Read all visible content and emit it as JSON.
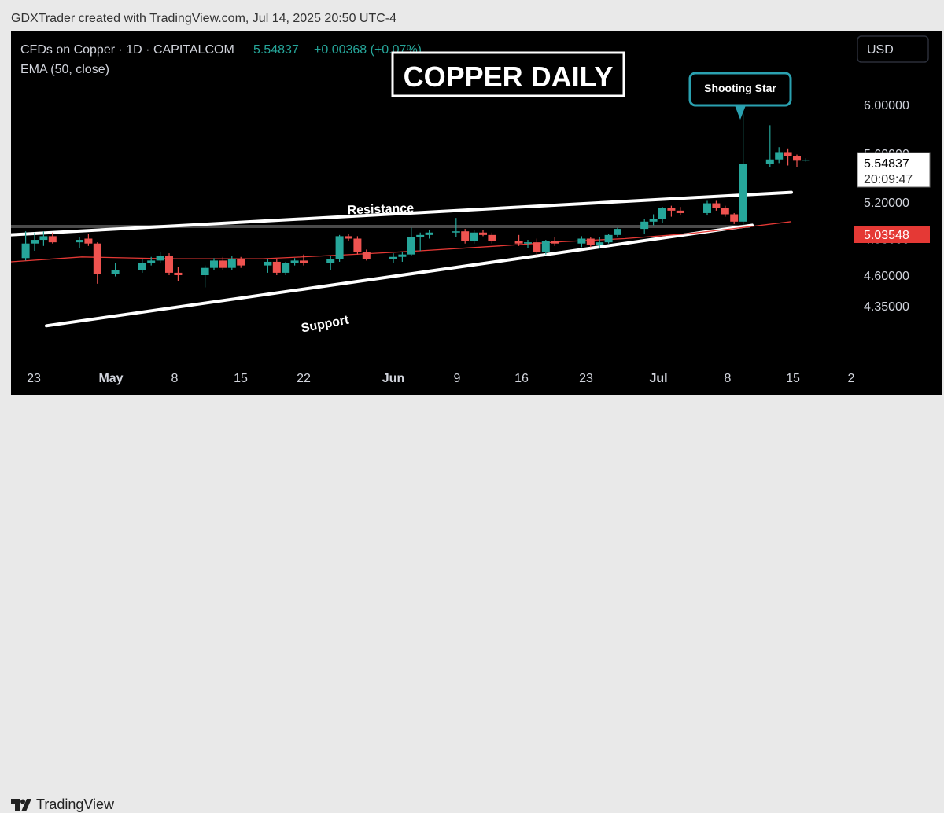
{
  "header": {
    "text": "GDXTrader created with TradingView.com, Jul 14, 2025 20:50 UTC-4"
  },
  "footer": {
    "logo_text": "TradingView"
  },
  "chart": {
    "symbol_line": "CFDs on Copper · 1D · CAPITALCOM",
    "price_text": "5.54837",
    "change_text": "+0.00368 (+0.07%)",
    "ema_label": "EMA (50, close)",
    "currency": "USD",
    "overlay_title": "COPPER DAILY",
    "callout": "Shooting Star",
    "resistance_label": "Resistance",
    "support_label": "Support",
    "last_price_box": "5.54837",
    "last_price_time": "20:09:47",
    "ema_price_box": "5.03548",
    "partial_tick_label": "5.60000",
    "edge_x_label": "2"
  },
  "colors": {
    "up": "#26a69a",
    "down": "#ef5350",
    "ema": "#e53935",
    "background": "#000000"
  },
  "chart_data": {
    "type": "candlestick",
    "title": "COPPER DAILY",
    "y_ticks": [
      "6.00000",
      "5.20000",
      "4.90000",
      "4.60000",
      "4.35000"
    ],
    "x_ticks": [
      "23",
      "May",
      "8",
      "15",
      "22",
      "Jun",
      "9",
      "16",
      "23",
      "Jul",
      "8",
      "15"
    ],
    "ylim": [
      4.2,
      6.3
    ],
    "candles": [
      {
        "date": "2025-04-22",
        "o": 4.74,
        "h": 4.96,
        "l": 4.72,
        "c": 4.86
      },
      {
        "date": "2025-04-23",
        "o": 4.86,
        "h": 4.95,
        "l": 4.8,
        "c": 4.89
      },
      {
        "date": "2025-04-24",
        "o": 4.89,
        "h": 4.96,
        "l": 4.84,
        "c": 4.92
      },
      {
        "date": "2025-04-25",
        "o": 4.92,
        "h": 4.95,
        "l": 4.86,
        "c": 4.87
      },
      {
        "date": "2025-04-28",
        "o": 4.87,
        "h": 4.91,
        "l": 4.82,
        "c": 4.89
      },
      {
        "date": "2025-04-29",
        "o": 4.9,
        "h": 4.94,
        "l": 4.84,
        "c": 4.86
      },
      {
        "date": "2025-04-30",
        "o": 4.86,
        "h": 4.87,
        "l": 4.53,
        "c": 4.61
      },
      {
        "date": "2025-05-02",
        "o": 4.61,
        "h": 4.7,
        "l": 4.59,
        "c": 4.64
      },
      {
        "date": "2025-05-05",
        "o": 4.64,
        "h": 4.73,
        "l": 4.62,
        "c": 4.7
      },
      {
        "date": "2025-05-06",
        "o": 4.7,
        "h": 4.75,
        "l": 4.68,
        "c": 4.72
      },
      {
        "date": "2025-05-07",
        "o": 4.72,
        "h": 4.79,
        "l": 4.7,
        "c": 4.76
      },
      {
        "date": "2025-05-08",
        "o": 4.76,
        "h": 4.78,
        "l": 4.6,
        "c": 4.62
      },
      {
        "date": "2025-05-09",
        "o": 4.62,
        "h": 4.67,
        "l": 4.55,
        "c": 4.6
      },
      {
        "date": "2025-05-12",
        "o": 4.6,
        "h": 4.68,
        "l": 4.5,
        "c": 4.66
      },
      {
        "date": "2025-05-13",
        "o": 4.66,
        "h": 4.74,
        "l": 4.64,
        "c": 4.72
      },
      {
        "date": "2025-05-14",
        "o": 4.72,
        "h": 4.75,
        "l": 4.64,
        "c": 4.66
      },
      {
        "date": "2025-05-15",
        "o": 4.66,
        "h": 4.76,
        "l": 4.64,
        "c": 4.73
      },
      {
        "date": "2025-05-16",
        "o": 4.73,
        "h": 4.75,
        "l": 4.66,
        "c": 4.68
      },
      {
        "date": "2025-05-19",
        "o": 4.68,
        "h": 4.73,
        "l": 4.62,
        "c": 4.71
      },
      {
        "date": "2025-05-20",
        "o": 4.71,
        "h": 4.73,
        "l": 4.6,
        "c": 4.62
      },
      {
        "date": "2025-05-21",
        "o": 4.62,
        "h": 4.71,
        "l": 4.6,
        "c": 4.7
      },
      {
        "date": "2025-05-22",
        "o": 4.7,
        "h": 4.74,
        "l": 4.68,
        "c": 4.72
      },
      {
        "date": "2025-05-23",
        "o": 4.72,
        "h": 4.77,
        "l": 4.68,
        "c": 4.7
      },
      {
        "date": "2025-05-26",
        "o": 4.7,
        "h": 4.76,
        "l": 4.64,
        "c": 4.73
      },
      {
        "date": "2025-05-27",
        "o": 4.73,
        "h": 4.93,
        "l": 4.71,
        "c": 4.92
      },
      {
        "date": "2025-05-28",
        "o": 4.92,
        "h": 4.94,
        "l": 4.88,
        "c": 4.9
      },
      {
        "date": "2025-05-29",
        "o": 4.9,
        "h": 4.92,
        "l": 4.77,
        "c": 4.79
      },
      {
        "date": "2025-05-30",
        "o": 4.79,
        "h": 4.81,
        "l": 4.72,
        "c": 4.73
      },
      {
        "date": "2025-06-02",
        "o": 4.73,
        "h": 4.78,
        "l": 4.7,
        "c": 4.75
      },
      {
        "date": "2025-06-03",
        "o": 4.75,
        "h": 4.79,
        "l": 4.71,
        "c": 4.77
      },
      {
        "date": "2025-06-04",
        "o": 4.77,
        "h": 4.99,
        "l": 4.76,
        "c": 4.91
      },
      {
        "date": "2025-06-05",
        "o": 4.91,
        "h": 4.95,
        "l": 4.8,
        "c": 4.93
      },
      {
        "date": "2025-06-06",
        "o": 4.93,
        "h": 4.97,
        "l": 4.9,
        "c": 4.95
      },
      {
        "date": "2025-06-09",
        "o": 4.95,
        "h": 5.07,
        "l": 4.91,
        "c": 4.96
      },
      {
        "date": "2025-06-10",
        "o": 4.96,
        "h": 4.98,
        "l": 4.86,
        "c": 4.88
      },
      {
        "date": "2025-06-11",
        "o": 4.88,
        "h": 4.97,
        "l": 4.86,
        "c": 4.95
      },
      {
        "date": "2025-06-12",
        "o": 4.95,
        "h": 4.97,
        "l": 4.92,
        "c": 4.93
      },
      {
        "date": "2025-06-13",
        "o": 4.93,
        "h": 4.95,
        "l": 4.86,
        "c": 4.88
      },
      {
        "date": "2025-06-16",
        "o": 4.88,
        "h": 4.93,
        "l": 4.84,
        "c": 4.86
      },
      {
        "date": "2025-06-17",
        "o": 4.86,
        "h": 4.89,
        "l": 4.82,
        "c": 4.87
      },
      {
        "date": "2025-06-18",
        "o": 4.87,
        "h": 4.9,
        "l": 4.76,
        "c": 4.79
      },
      {
        "date": "2025-06-19",
        "o": 4.79,
        "h": 4.89,
        "l": 4.77,
        "c": 4.88
      },
      {
        "date": "2025-06-20",
        "o": 4.88,
        "h": 4.91,
        "l": 4.84,
        "c": 4.86
      },
      {
        "date": "2025-06-23",
        "o": 4.86,
        "h": 4.92,
        "l": 4.83,
        "c": 4.9
      },
      {
        "date": "2025-06-24",
        "o": 4.9,
        "h": 4.91,
        "l": 4.83,
        "c": 4.85
      },
      {
        "date": "2025-06-25",
        "o": 4.85,
        "h": 4.91,
        "l": 4.82,
        "c": 4.87
      },
      {
        "date": "2025-06-26",
        "o": 4.87,
        "h": 4.94,
        "l": 4.86,
        "c": 4.93
      },
      {
        "date": "2025-06-27",
        "o": 4.93,
        "h": 4.99,
        "l": 4.91,
        "c": 4.98
      },
      {
        "date": "2025-06-30",
        "o": 4.98,
        "h": 5.06,
        "l": 4.94,
        "c": 5.04
      },
      {
        "date": "2025-07-01",
        "o": 5.04,
        "h": 5.1,
        "l": 5.01,
        "c": 5.06
      },
      {
        "date": "2025-07-02",
        "o": 5.06,
        "h": 5.16,
        "l": 5.03,
        "c": 5.15
      },
      {
        "date": "2025-07-03",
        "o": 5.15,
        "h": 5.17,
        "l": 5.08,
        "c": 5.13
      },
      {
        "date": "2025-07-04",
        "o": 5.13,
        "h": 5.16,
        "l": 5.09,
        "c": 5.11
      },
      {
        "date": "2025-07-07",
        "o": 5.11,
        "h": 5.21,
        "l": 5.09,
        "c": 5.19
      },
      {
        "date": "2025-07-08",
        "o": 5.19,
        "h": 5.21,
        "l": 5.13,
        "c": 5.15
      },
      {
        "date": "2025-07-09",
        "o": 5.15,
        "h": 5.17,
        "l": 5.08,
        "c": 5.1
      },
      {
        "date": "2025-07-10",
        "o": 5.1,
        "h": 5.11,
        "l": 5.02,
        "c": 5.04
      },
      {
        "date": "2025-07-11",
        "o": 5.04,
        "h": 5.92,
        "l": 5.01,
        "c": 5.51
      },
      {
        "date": "2025-07-14",
        "o": 5.51,
        "h": 5.83,
        "l": 5.49,
        "c": 5.55
      },
      {
        "date": "2025-07-15",
        "o": 5.55,
        "h": 5.65,
        "l": 5.52,
        "c": 5.61
      },
      {
        "date": "2025-07-16",
        "o": 5.61,
        "h": 5.64,
        "l": 5.5,
        "c": 5.58
      },
      {
        "date": "2025-07-17",
        "o": 5.58,
        "h": 5.59,
        "l": 5.49,
        "c": 5.54
      },
      {
        "date": "2025-07-18",
        "o": 5.54,
        "h": 5.56,
        "l": 5.53,
        "c": 5.54837
      }
    ],
    "ema": {
      "name": "EMA (50, close)",
      "last_value": 5.03548
    },
    "last_price": 5.54837,
    "annotations": [
      "COPPER DAILY",
      "Shooting Star",
      "Resistance",
      "Support"
    ]
  }
}
